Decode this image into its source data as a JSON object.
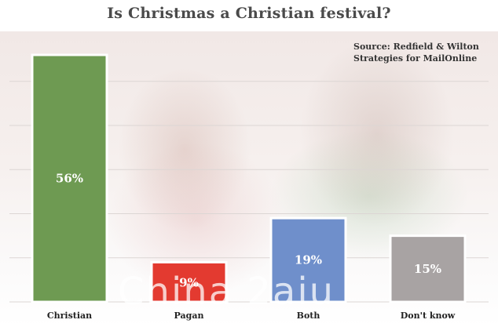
{
  "chart_data": {
    "type": "bar",
    "title": "Is Christmas a Christian festival?",
    "source": "Source: Redfield & Wilton Strategies for MailOnline",
    "categories": [
      "Christian",
      "Pagan",
      "Both",
      "Don't know"
    ],
    "values": [
      56,
      9,
      19,
      15
    ],
    "value_labels": [
      "56%",
      "9%",
      "19%",
      "15%"
    ],
    "colors": [
      "#6e9a52",
      "#e33a30",
      "#6f8fcb",
      "#a8a3a3"
    ],
    "ylim": [
      0,
      60
    ],
    "grid": true
  },
  "watermark": "China 2aiu"
}
